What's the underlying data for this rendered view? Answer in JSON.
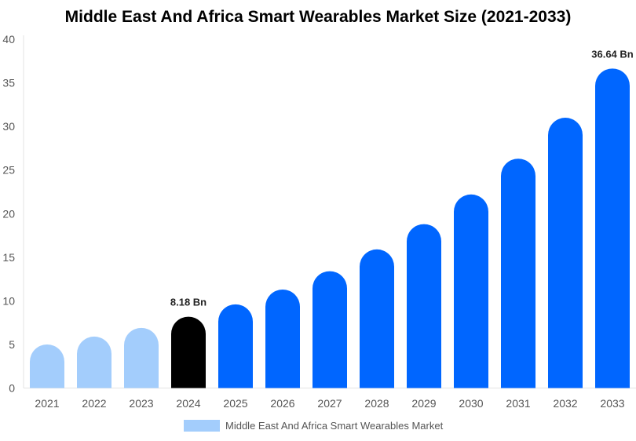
{
  "chart_data": {
    "type": "bar",
    "title": "Middle East And Africa Smart Wearables Market Size (2021-2033)",
    "categories": [
      "2021",
      "2022",
      "2023",
      "2024",
      "2025",
      "2026",
      "2027",
      "2028",
      "2029",
      "2030",
      "2031",
      "2032",
      "2033"
    ],
    "series": [
      {
        "name": "Middle East And Africa Smart Wearables Market",
        "values": [
          5.0,
          5.9,
          6.9,
          8.18,
          9.6,
          11.3,
          13.4,
          15.9,
          18.8,
          22.2,
          26.3,
          31.0,
          36.64
        ]
      }
    ],
    "bar_colors": [
      "#a3cdfc",
      "#a3cdfc",
      "#a3cdfc",
      "#000000",
      "#0066ff",
      "#0066ff",
      "#0066ff",
      "#0066ff",
      "#0066ff",
      "#0066ff",
      "#0066ff",
      "#0066ff",
      "#0066ff"
    ],
    "data_labels": {
      "3": "8.18 Bn",
      "12": "36.64 Bn"
    },
    "ylim": [
      0,
      40
    ],
    "yticks": [
      0,
      5,
      10,
      15,
      20,
      25,
      30,
      35,
      40
    ],
    "xlabel": "",
    "ylabel": "",
    "grid": false,
    "legend_position": "bottom",
    "legend_color": "#a3cdfc"
  }
}
